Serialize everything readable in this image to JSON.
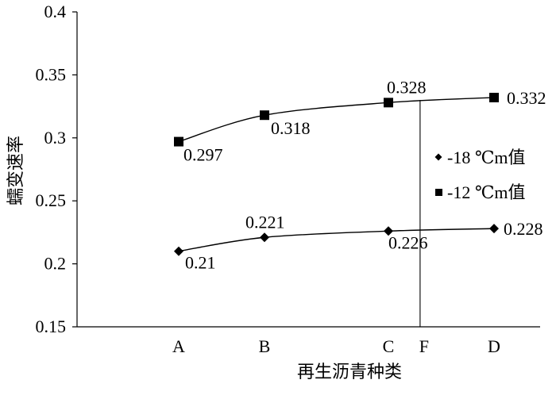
{
  "chart_data": {
    "type": "line",
    "categories": [
      "A",
      "B",
      "C",
      "D"
    ],
    "ylim": [
      0.15,
      0.4
    ],
    "yticks": [
      "0.4",
      "0.35",
      "0.3",
      "0.25",
      "0.2",
      "0.15"
    ],
    "ylabel": "蠕变速率",
    "xlabel": "再生沥青种类",
    "series": [
      {
        "name": "-18 ℃m值",
        "marker": "diamond",
        "values": [
          0.21,
          0.221,
          0.226,
          0.228
        ],
        "labels": [
          "0.21",
          "0.221",
          "0.226",
          "0.228"
        ]
      },
      {
        "name": "-12 ℃m值",
        "marker": "square",
        "values": [
          0.297,
          0.318,
          0.328,
          0.332
        ],
        "labels": [
          "0.297",
          "0.318",
          "0.328",
          "0.332"
        ]
      }
    ],
    "vertical_marker": {
      "label": "F",
      "category_position": 2.3
    },
    "legend_position": "right",
    "grid": false
  }
}
